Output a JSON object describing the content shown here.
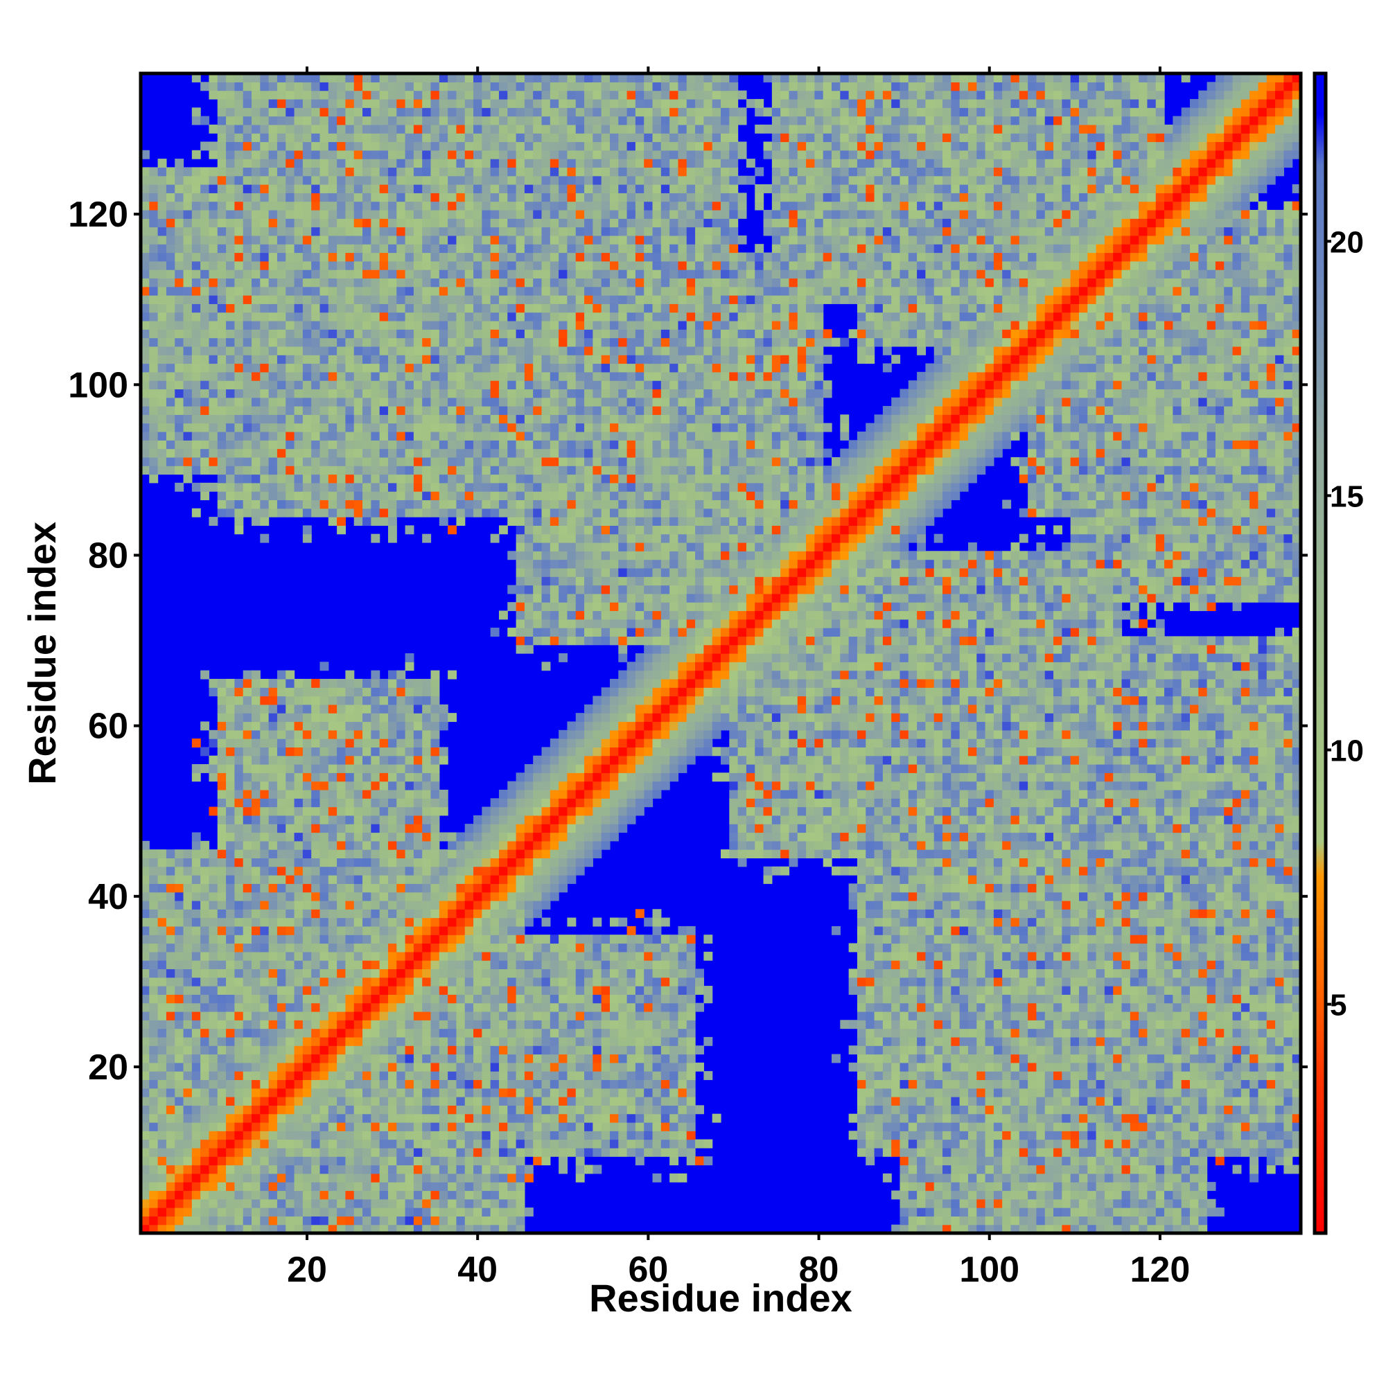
{
  "chart_data": {
    "type": "heatmap",
    "title": "",
    "xlabel": "Residue index",
    "ylabel": "Residue index",
    "xlim": [
      0.5,
      136.5
    ],
    "ylim": [
      0.5,
      136.5
    ],
    "n_residues": 136,
    "x_ticks": [
      20,
      40,
      60,
      80,
      100,
      120
    ],
    "y_ticks": [
      20,
      40,
      60,
      80,
      100,
      120
    ],
    "colorbar": {
      "range": [
        0.5,
        23.3
      ],
      "ticks": [
        5,
        10,
        15,
        20
      ],
      "saturation_color": "#0000f5",
      "stops": [
        {
          "value": 0.5,
          "color": "#ff0000"
        },
        {
          "value": 3.5,
          "color": "#ff3300"
        },
        {
          "value": 5.5,
          "color": "#ff6a00"
        },
        {
          "value": 7.5,
          "color": "#ff9600"
        },
        {
          "value": 8.2,
          "color": "#a9c982"
        },
        {
          "value": 12.0,
          "color": "#9dbd88"
        },
        {
          "value": 16.0,
          "color": "#8fa8a0"
        },
        {
          "value": 19.5,
          "color": "#6a85c0"
        },
        {
          "value": 21.5,
          "color": "#5a78c8"
        },
        {
          "value": 22.5,
          "color": "#0000f5"
        }
      ]
    },
    "contact_blocks": [
      {
        "x": [
          1,
          45
        ],
        "y": [
          1,
          45
        ],
        "level": 0.85
      },
      {
        "x": [
          1,
          30
        ],
        "y": [
          95,
          120
        ],
        "level": 0.45
      },
      {
        "x": [
          25,
          60
        ],
        "y": [
          90,
          136
        ],
        "level": 0.75
      },
      {
        "x": [
          75,
          110
        ],
        "y": [
          110,
          136
        ],
        "level": 0.75
      },
      {
        "x": [
          105,
          136
        ],
        "y": [
          85,
          120
        ],
        "level": 0.7
      },
      {
        "x": [
          80,
          115
        ],
        "y": [
          55,
          80
        ],
        "level": 0.75
      },
      {
        "x": [
          85,
          136
        ],
        "y": [
          10,
          70
        ],
        "level": 0.6
      },
      {
        "x": [
          90,
          125
        ],
        "y": [
          1,
          15
        ],
        "level": 0.4
      },
      {
        "x": [
          30,
          65
        ],
        "y": [
          10,
          35
        ],
        "level": 0.75
      },
      {
        "x": [
          45,
          75
        ],
        "y": [
          70,
          100
        ],
        "level": 0.7
      }
    ],
    "legend": "colorbar-right",
    "grid": false
  }
}
